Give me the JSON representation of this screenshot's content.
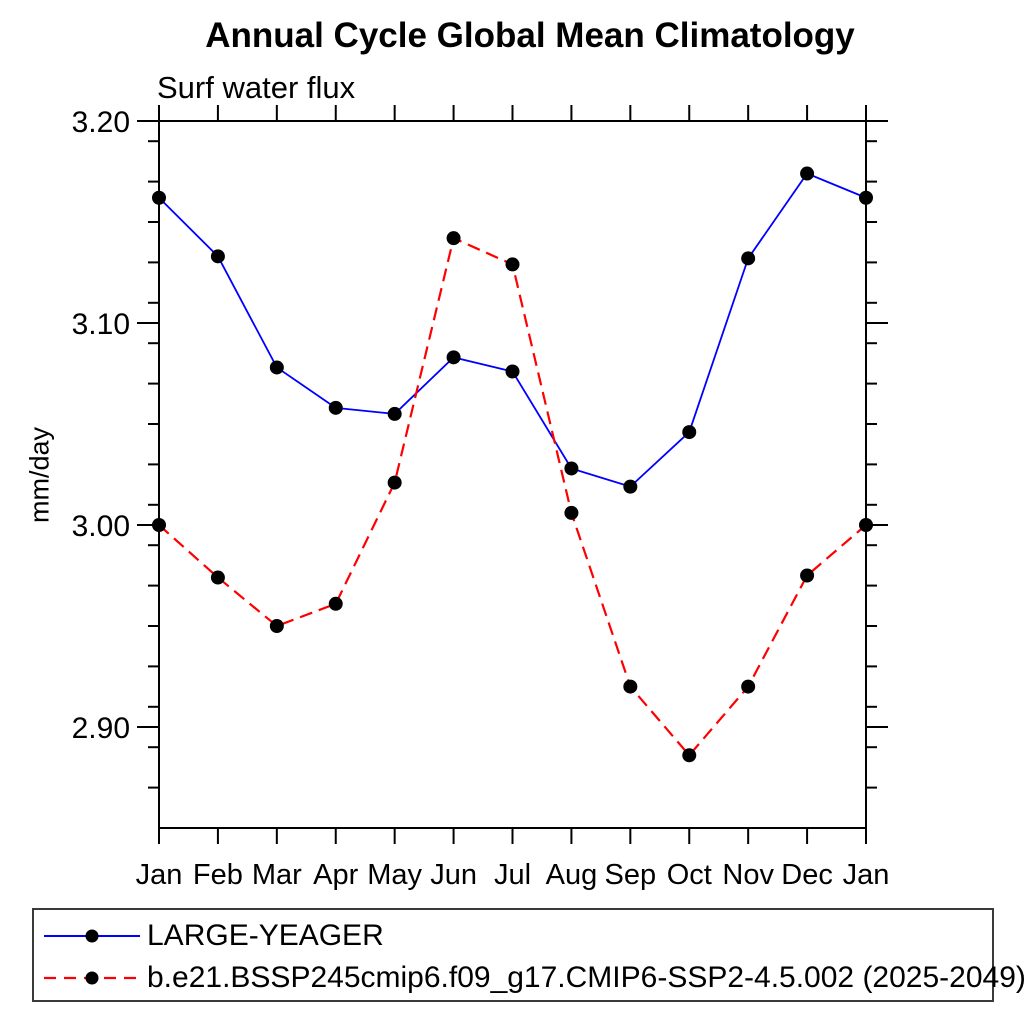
{
  "figure": {
    "title": "Annual Cycle Global Mean Climatology",
    "subtitle": "Surf water flux",
    "ylabel": "mm/day"
  },
  "chart_data": {
    "type": "line",
    "title": "Annual Cycle Global Mean Climatology",
    "subtitle": "Surf water flux",
    "xlabel": "",
    "ylabel": "mm/day",
    "categories": [
      "Jan",
      "Feb",
      "Mar",
      "Apr",
      "May",
      "Jun",
      "Jul",
      "Aug",
      "Sep",
      "Oct",
      "Nov",
      "Dec",
      "Jan"
    ],
    "ylim": [
      2.85,
      3.2
    ],
    "ytick_labels": [
      "3.20",
      "3.10",
      "3.00",
      "2.90"
    ],
    "ytick_values": [
      3.2,
      3.1,
      3.0,
      2.9
    ],
    "ytick_minor_step": 0.02,
    "grid": false,
    "legend_position": "bottom",
    "marker": "filled-circle",
    "marker_color": "#000000",
    "series": [
      {
        "name": "LARGE-YEAGER",
        "color": "#0000ff",
        "line_style": "solid",
        "values": [
          3.162,
          3.133,
          3.078,
          3.058,
          3.055,
          3.083,
          3.076,
          3.028,
          3.019,
          3.046,
          3.132,
          3.174,
          3.162
        ]
      },
      {
        "name": "b.e21.BSSP245cmip6.f09_g17.CMIP6-SSP2-4.5.002 (2025-2049)",
        "color": "#ff0000",
        "line_style": "dashed",
        "values": [
          3.0,
          2.974,
          2.95,
          2.961,
          3.021,
          3.142,
          3.129,
          3.006,
          2.92,
          2.886,
          2.92,
          2.975,
          3.0
        ]
      }
    ]
  }
}
